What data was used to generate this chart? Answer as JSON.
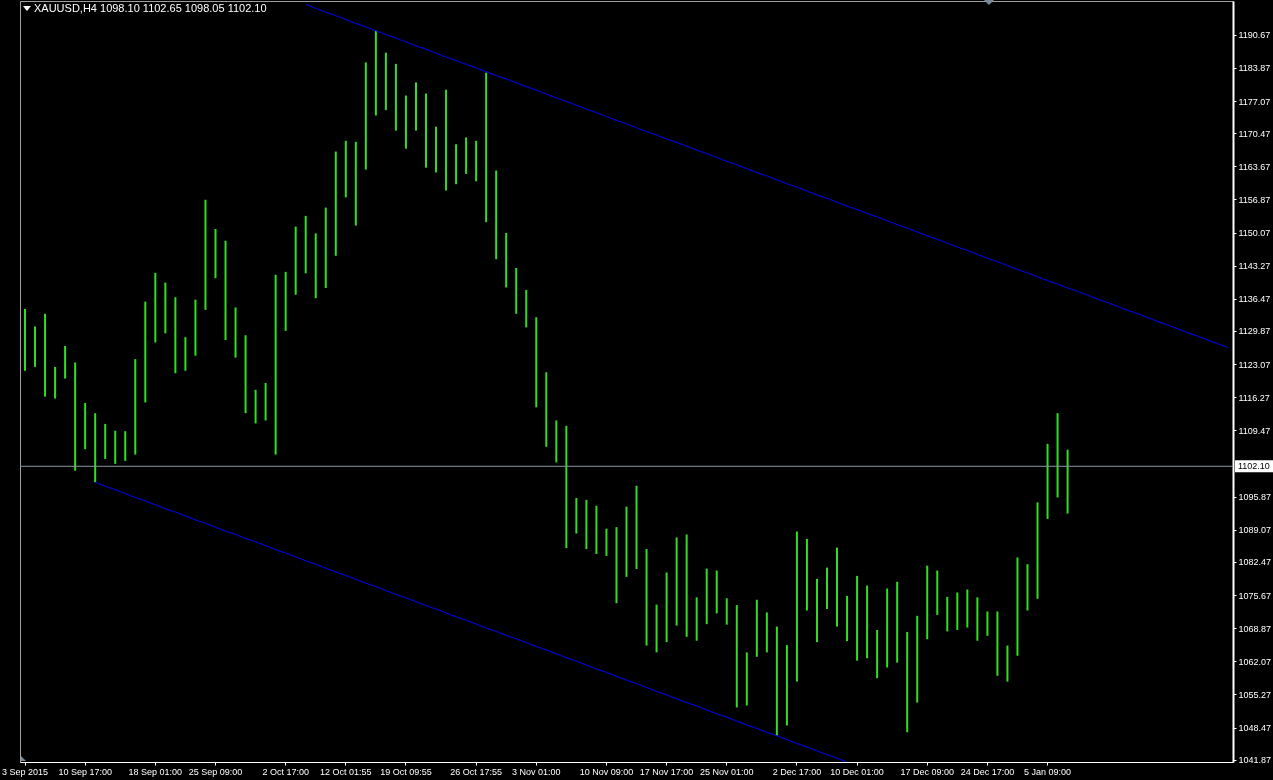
{
  "chart_data": {
    "type": "bar",
    "title": "XAUUSD,H4 1098.10 1102.65 1098.05 1102.10",
    "categories": [
      "3 Sep 2015",
      null,
      null,
      null,
      null,
      null,
      "10 Sep 17:00",
      null,
      null,
      null,
      null,
      null,
      null,
      "18 Sep 01:00",
      null,
      null,
      null,
      null,
      null,
      "25 Sep 09:00",
      null,
      null,
      null,
      null,
      null,
      null,
      "2 Oct 17:00",
      null,
      null,
      null,
      null,
      null,
      "12 Oct 01:55",
      null,
      null,
      null,
      null,
      null,
      "19 Oct 09:55",
      null,
      null,
      null,
      null,
      null,
      null,
      "26 Oct 17:55",
      null,
      null,
      null,
      null,
      null,
      "3 Nov 01:00",
      null,
      null,
      null,
      null,
      null,
      null,
      "10 Nov 09:00",
      null,
      null,
      null,
      null,
      null,
      "17 Nov 17:00",
      null,
      null,
      null,
      null,
      null,
      "25 Nov 01:00",
      null,
      null,
      null,
      null,
      null,
      null,
      "2 Dec 17:00",
      null,
      null,
      null,
      null,
      null,
      "10 Dec 01:00",
      null,
      null,
      null,
      null,
      null,
      null,
      "17 Dec 09:00",
      null,
      null,
      null,
      null,
      null,
      "24 Dec 17:00",
      null,
      null,
      null,
      null,
      null,
      "5 Jan 09:00",
      null,
      null,
      null,
      null,
      null,
      null,
      null,
      null,
      null,
      null,
      null,
      null,
      null,
      null,
      null,
      null,
      null,
      null
    ],
    "series": [
      {
        "color": "#33dd22",
        "base": [
          1121.7,
          1122.5,
          1116.4,
          1116.0,
          1120.1,
          1101.2,
          1105.6,
          1098.8,
          1103.6,
          1102.6,
          1103.2,
          1104.5,
          1115.2,
          1127.5,
          1129.4,
          1121.2,
          1121.7,
          1124.8,
          1134.2,
          1140.7,
          1128.0,
          1124.4,
          1113.0,
          1110.9,
          1111.5,
          1104.5,
          1129.9,
          1137.3,
          1141.7,
          1136.6,
          1138.7,
          1145.3,
          1157.3,
          1151.5,
          1163.0,
          1174.1,
          1175.2,
          1171.0,
          1167.3,
          1171.0,
          1163.4,
          1162.4,
          1158.7,
          1160.0,
          1162.1,
          1160.6,
          1152.2,
          1144.6,
          1138.8,
          1133.4,
          1130.6,
          1114.2,
          1106.1,
          1102.9,
          1085.3,
          1088.3,
          1085.1,
          1084.1,
          1083.7,
          1074.0,
          1079.4,
          1081.0,
          1065.3,
          1063.9,
          1066.0,
          1069.4,
          1067.1,
          1066.3,
          1069.7,
          1071.9,
          1069.6,
          1052.6,
          1053.0,
          1063.0,
          1063.9,
          1046.8,
          1048.9,
          1057.9,
          1072.5,
          1066.0,
          1072.8,
          1069.2,
          1066.2,
          1062.2,
          1062.7,
          1058.6,
          1060.8,
          1061.8,
          1047.5,
          1053.6,
          1066.6,
          1071.6,
          1068.2,
          1068.5,
          1069.0,
          1066.3,
          1067.3,
          1059.1,
          1057.9,
          1063.2,
          1072.5,
          1074.9,
          1091.3,
          1095.7,
          1092.4,
          null,
          null,
          null,
          null,
          null,
          null,
          null,
          null,
          null,
          null,
          null,
          null,
          null,
          null,
          null,
          null
        ],
        "values": [
          12.7,
          8.3,
          17.0,
          6.5,
          6.7,
          22.2,
          9.5,
          14.2,
          7.2,
          6.8,
          6.1,
          19.6,
          20.7,
          14.3,
          10.4,
          15.6,
          6.9,
          11.5,
          22.6,
          10.1,
          20.4,
          10.3,
          16.0,
          6.9,
          7.7,
          36.9,
          12.1,
          14.0,
          11.8,
          13.3,
          16.5,
          21.4,
          11.6,
          17.2,
          22.0,
          17.4,
          11.8,
          13.7,
          10.9,
          9.9,
          15.2,
          9.4,
          20.7,
          8.2,
          7.5,
          8.3,
          30.7,
          18.2,
          11.2,
          9.4,
          7.7,
          18.5,
          15.3,
          8.6,
          25.1,
          7.3,
          10.1,
          9.9,
          5.6,
          15.6,
          14.4,
          17.1,
          19.8,
          9.8,
          14.3,
          18.1,
          21.0,
          8.9,
          11.4,
          8.8,
          5.4,
          21.0,
          10.9,
          11.7,
          8.2,
          22.4,
          16.5,
          30.8,
          14.7,
          13.0,
          8.5,
          16.2,
          9.3,
          17.4,
          14.9,
          9.9,
          16.2,
          16.6,
          20.6,
          17.8,
          15.1,
          9.1,
          7.1,
          7.7,
          7.8,
          8.9,
          5.0,
          13.2,
          7.4,
          20.2,
          9.5,
          19.8,
          15.4,
          17.3,
          13.1,
          null,
          null,
          null,
          null,
          null,
          null,
          null,
          null,
          null,
          null,
          null,
          null,
          null,
          null,
          null,
          null
        ]
      },
      {
        "type": "line",
        "color": "#0000ff",
        "values": [
          null,
          null,
          null,
          null,
          null,
          null,
          null,
          null,
          null,
          null,
          null,
          null,
          null,
          null,
          null,
          null,
          null,
          null,
          null,
          null,
          null,
          null,
          null,
          null,
          null,
          null,
          null,
          null,
          1196.9,
          1196.1,
          1195.3,
          1194.6,
          1193.8,
          1193.0,
          1192.3,
          1191.5,
          1190.7,
          1190.0,
          1189.2,
          1188.4,
          1187.7,
          1186.9,
          1186.1,
          1185.4,
          1184.6,
          1183.9,
          1183.1,
          1182.3,
          1181.6,
          1180.8,
          1180.0,
          1179.3,
          1178.5,
          1177.7,
          1177.0,
          1176.2,
          1175.4,
          1174.7,
          1173.9,
          1173.1,
          1172.4,
          1171.6,
          1170.8,
          1170.1,
          1169.3,
          1168.6,
          1167.8,
          1167.0,
          1166.3,
          1165.5,
          1164.7,
          1164.0,
          1163.2,
          1162.4,
          1161.7,
          1160.9,
          1160.1,
          1159.4,
          1158.6,
          1157.8,
          1157.1,
          1156.3,
          1155.5,
          1154.8,
          1154.0,
          1153.3,
          1152.5,
          1151.7,
          1151.0,
          1150.2,
          1149.4,
          1148.7,
          1147.9,
          1147.1,
          1146.4,
          1145.6,
          1144.8,
          1144.1,
          1143.3,
          1142.5,
          1141.8,
          1141.0,
          1140.2,
          1139.5,
          1138.7,
          1138.0,
          1137.2,
          1136.4,
          1135.7,
          1134.9,
          1134.1,
          1133.4,
          1132.6,
          1131.8,
          1131.1,
          1130.3,
          1129.5,
          1128.8,
          1128.0,
          1127.2,
          1126.5
        ]
      },
      {
        "type": "line",
        "color": "#0000ff",
        "values": [
          null,
          null,
          null,
          null,
          null,
          null,
          null,
          1098.8,
          1098.0,
          1097.3,
          1096.5,
          1095.7,
          1095.0,
          1094.2,
          1093.4,
          1092.7,
          1091.9,
          1091.1,
          1090.4,
          1089.6,
          1088.8,
          1088.1,
          1087.3,
          1086.6,
          1085.8,
          1085.0,
          1084.3,
          1083.5,
          1082.7,
          1082.0,
          1081.2,
          1080.4,
          1079.7,
          1078.9,
          1078.1,
          1077.4,
          1076.6,
          1075.8,
          1075.1,
          1074.3,
          1073.5,
          1072.8,
          1072.0,
          1071.2,
          1070.5,
          1069.7,
          1068.9,
          1068.2,
          1067.4,
          1066.7,
          1065.9,
          1065.1,
          1064.4,
          1063.6,
          1062.8,
          1062.1,
          1061.3,
          1060.5,
          1059.8,
          1059.0,
          1058.2,
          1057.5,
          1056.7,
          1055.9,
          1055.2,
          1054.4,
          1053.6,
          1052.9,
          1052.1,
          1051.3,
          1050.6,
          1049.8,
          1049.0,
          1048.3,
          1047.5,
          1046.8,
          1046.0,
          1045.2,
          1044.5,
          1043.7,
          1042.9,
          1042.2,
          1041.4,
          null,
          null,
          null,
          null,
          null,
          null,
          null,
          null,
          null,
          null,
          null,
          null,
          null,
          null,
          null,
          null,
          null,
          null,
          null,
          null,
          null,
          null,
          null,
          null,
          null,
          null,
          null,
          null,
          null,
          null,
          null,
          null,
          null,
          null,
          null,
          null,
          null,
          null
        ]
      }
    ],
    "ylim": [
      1041.4,
      1197.6
    ],
    "yticks": [
      1041.87,
      1048.47,
      1055.27,
      1062.07,
      1068.87,
      1075.67,
      1082.47,
      1089.07,
      1095.87,
      1109.47,
      1116.27,
      1123.07,
      1129.87,
      1136.47,
      1143.27,
      1150.07,
      1156.87,
      1163.67,
      1170.47,
      1177.07,
      1183.87,
      1190.67
    ],
    "ref_lines": [
      {
        "axis": "y",
        "value": 1102.1,
        "label": "1102.10",
        "color": "#8c96a0"
      }
    ]
  }
}
